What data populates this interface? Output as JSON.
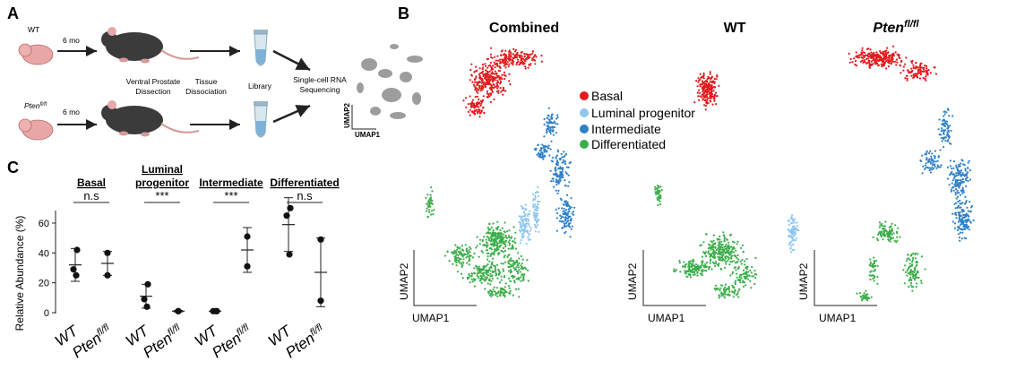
{
  "panel_a": {
    "label": "A",
    "wt_label": "WT",
    "pten_base": "Pten",
    "pten_sup": "fl/fl",
    "age": "6 mo",
    "step_dissection_1": "Ventral Prostate",
    "step_dissection_2": "Dissection",
    "step_tissue_1": "Tissue",
    "step_tissue_2": "Dissociation",
    "step_library": "Library",
    "step_seq_1": "Single-cell RNA",
    "step_seq_2": "Sequencing",
    "umap1": "UMAP1",
    "umap2": "UMAP2"
  },
  "panel_b": {
    "label": "B",
    "title_combined": "Combined",
    "title_wt": "WT",
    "title_pten_base": "Pten",
    "title_pten_sup": "fl/fl",
    "legend": [
      {
        "label": "Basal",
        "color": "#e41a1c"
      },
      {
        "label": "Luminal progenitor",
        "color": "#8ec6f0"
      },
      {
        "label": "Intermediate",
        "color": "#2f80c8"
      },
      {
        "label": "Differentiated",
        "color": "#3bae4a"
      }
    ],
    "umap1": "UMAP1",
    "umap2": "UMAP2"
  },
  "colors": {
    "basal": "#e41a1c",
    "luminal": "#8ec6f0",
    "intermediate": "#2f80c8",
    "differentiated": "#3bae4a"
  },
  "panel_c": {
    "label": "C",
    "ylabel": "Relative Abundance (%)",
    "yticks": [
      "0",
      "20",
      "40",
      "60"
    ],
    "groups": [
      {
        "name_1": "Basal",
        "name_2": "",
        "sig": "n.s"
      },
      {
        "name_1": "Luminal",
        "name_2": "progenitor",
        "sig": "***"
      },
      {
        "name_1": "Intermediate",
        "name_2": "",
        "sig": "***"
      },
      {
        "name_1": "Differentiated",
        "name_2": "",
        "sig": "n.s"
      }
    ],
    "xtick_wt": "WT",
    "xtick_pten_base": "Pten",
    "xtick_pten_sup": "fl/fl"
  },
  "chart_data": {
    "type": "scatter",
    "title": "",
    "ylabel": "Relative Abundance (%)",
    "ylim": [
      0,
      75
    ],
    "categories": [
      "Basal",
      "Luminal progenitor",
      "Intermediate",
      "Differentiated"
    ],
    "series": [
      {
        "name": "WT",
        "mean": [
          32,
          11,
          1,
          59
        ],
        "sd": [
          11,
          8,
          0.5,
          18
        ],
        "points": [
          [
            42,
            29,
            25
          ],
          [
            19,
            9,
            4
          ],
          [
            1,
            1,
            1
          ],
          [
            70,
            65,
            39
          ]
        ]
      },
      {
        "name": "Pten fl/fl",
        "mean": [
          33,
          1,
          42,
          27
        ],
        "sd": [
          8,
          0.5,
          15,
          23
        ],
        "points": [
          [
            40,
            25
          ],
          [
            1,
            1
          ],
          [
            51,
            31
          ],
          [
            49,
            8
          ]
        ]
      }
    ],
    "significance": [
      "n.s",
      "***",
      "***",
      "n.s"
    ]
  }
}
